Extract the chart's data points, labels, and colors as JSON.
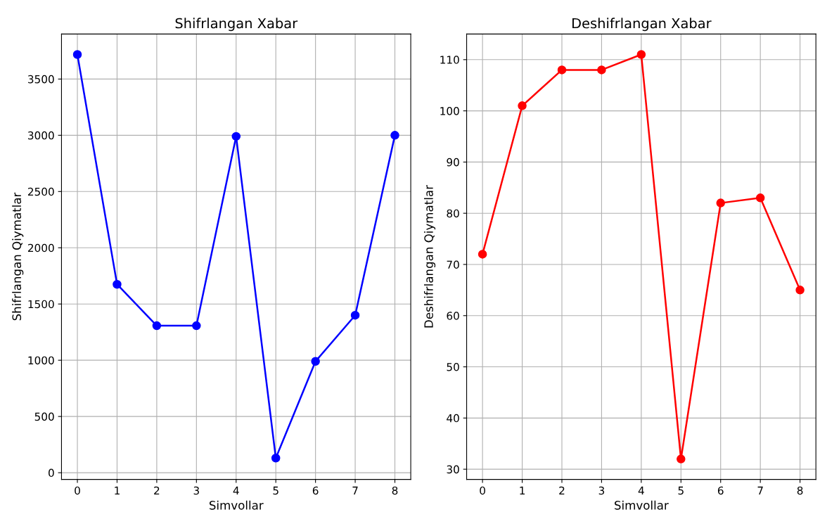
{
  "chart_data": [
    {
      "type": "line",
      "title": "Shifrlangan Xabar",
      "xlabel": "Simvollar",
      "ylabel": "Shifrlangan Qiymatlar",
      "x": [
        0,
        1,
        2,
        3,
        4,
        5,
        6,
        7,
        8
      ],
      "series": [
        {
          "color": "#0000ff",
          "values": [
            3718,
            1675,
            1307,
            1307,
            2990,
            130,
            990,
            1400,
            3000
          ]
        }
      ],
      "xlim": [
        -0.4,
        8.4
      ],
      "xticks": [
        0,
        1,
        2,
        3,
        4,
        5,
        6,
        7,
        8
      ],
      "ylim": [
        -60,
        3900
      ],
      "yticks": [
        0,
        500,
        1000,
        1500,
        2000,
        2500,
        3000,
        3500
      ],
      "grid": true,
      "marker": "circle",
      "line_style": "solid"
    },
    {
      "type": "line",
      "title": "Deshifrlangan Xabar",
      "xlabel": "Simvollar",
      "ylabel": "Deshifrlangan Qiymatlar",
      "x": [
        0,
        1,
        2,
        3,
        4,
        5,
        6,
        7,
        8
      ],
      "series": [
        {
          "color": "#ff0000",
          "values": [
            72,
            101,
            108,
            108,
            111,
            32,
            82,
            83,
            65
          ]
        }
      ],
      "xlim": [
        -0.4,
        8.4
      ],
      "xticks": [
        0,
        1,
        2,
        3,
        4,
        5,
        6,
        7,
        8
      ],
      "ylim": [
        28,
        115
      ],
      "yticks": [
        30,
        40,
        50,
        60,
        70,
        80,
        90,
        100,
        110
      ],
      "grid": true,
      "marker": "circle",
      "line_style": "solid"
    }
  ]
}
